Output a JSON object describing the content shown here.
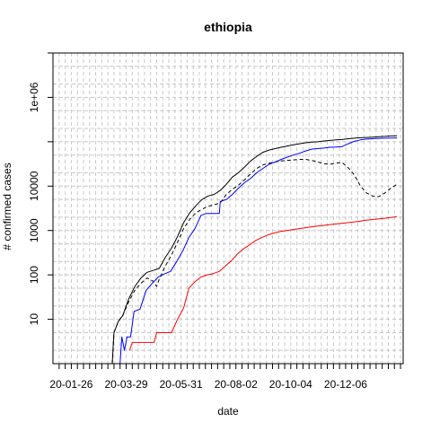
{
  "chart_data": {
    "type": "line",
    "title": "ethiopia",
    "xlabel": "date",
    "ylabel": "# confirmed cases",
    "y_scale": "log",
    "ylim": [
      1,
      10000000
    ],
    "xlim": [
      "2020-01-07",
      "2021-02-08"
    ],
    "grid": true,
    "legend": "none",
    "x_tick_labels": [
      {
        "date": "2020-01-26",
        "label": "20-01-26"
      },
      {
        "date": "2020-03-29",
        "label": "20-03-29"
      },
      {
        "date": "2020-05-31",
        "label": "20-05-31"
      },
      {
        "date": "2020-08-02",
        "label": "20-08-02"
      },
      {
        "date": "2020-10-04",
        "label": "20-10-04"
      },
      {
        "date": "2020-12-06",
        "label": "20-12-06"
      }
    ],
    "y_tick_labels": [
      {
        "value": 10,
        "label": "10"
      },
      {
        "value": 100,
        "label": "100"
      },
      {
        "value": 1000,
        "label": "1000"
      },
      {
        "value": 10000,
        "label": "10000"
      },
      {
        "value": 1000000,
        "label": "1e+06"
      }
    ],
    "series": [
      {
        "color": "#000000",
        "dash": "solid",
        "points": [
          [
            "2020-03-13",
            1
          ],
          [
            "2020-03-15",
            5
          ],
          [
            "2020-03-20",
            9
          ],
          [
            "2020-03-25",
            12
          ],
          [
            "2020-04-01",
            29
          ],
          [
            "2020-04-08",
            55
          ],
          [
            "2020-04-15",
            85
          ],
          [
            "2020-04-22",
            114
          ],
          [
            "2020-04-29",
            126
          ],
          [
            "2020-05-06",
            140
          ],
          [
            "2020-05-13",
            250
          ],
          [
            "2020-05-20",
            400
          ],
          [
            "2020-05-27",
            730
          ],
          [
            "2020-06-03",
            1500
          ],
          [
            "2020-06-10",
            2500
          ],
          [
            "2020-06-17",
            3600
          ],
          [
            "2020-06-24",
            5000
          ],
          [
            "2020-07-01",
            6000
          ],
          [
            "2020-07-08",
            6500
          ],
          [
            "2020-07-15",
            8000
          ],
          [
            "2020-07-22",
            11000
          ],
          [
            "2020-07-29",
            16000
          ],
          [
            "2020-08-05",
            20000
          ],
          [
            "2020-08-12",
            27000
          ],
          [
            "2020-08-19",
            37000
          ],
          [
            "2020-08-26",
            47000
          ],
          [
            "2020-09-02",
            58000
          ],
          [
            "2020-09-09",
            65000
          ],
          [
            "2020-09-16",
            70000
          ],
          [
            "2020-09-23",
            75000
          ],
          [
            "2020-09-30",
            80000
          ],
          [
            "2020-10-07",
            85000
          ],
          [
            "2020-10-14",
            90000
          ],
          [
            "2020-10-21",
            95000
          ],
          [
            "2020-10-28",
            98000
          ],
          [
            "2020-11-04",
            100000
          ],
          [
            "2020-11-11",
            104000
          ],
          [
            "2020-11-18",
            107000
          ],
          [
            "2020-11-25",
            110000
          ],
          [
            "2020-12-02",
            112000
          ],
          [
            "2020-12-09",
            117000
          ],
          [
            "2020-12-16",
            120000
          ],
          [
            "2020-12-23",
            123000
          ],
          [
            "2020-12-30",
            125000
          ],
          [
            "2021-01-06",
            127000
          ],
          [
            "2021-01-13",
            130000
          ],
          [
            "2021-01-20",
            132000
          ],
          [
            "2021-01-27",
            135000
          ],
          [
            "2021-02-03",
            137000
          ]
        ]
      },
      {
        "color": "#000000",
        "dash": "dashed",
        "points": [
          [
            "2020-03-13",
            1
          ],
          [
            "2020-03-15",
            5
          ],
          [
            "2020-03-20",
            9
          ],
          [
            "2020-03-25",
            12
          ],
          [
            "2020-04-01",
            25
          ],
          [
            "2020-04-08",
            45
          ],
          [
            "2020-04-15",
            65
          ],
          [
            "2020-04-22",
            85
          ],
          [
            "2020-04-29",
            72
          ],
          [
            "2020-05-03",
            55
          ],
          [
            "2020-05-06",
            80
          ],
          [
            "2020-05-13",
            160
          ],
          [
            "2020-05-20",
            280
          ],
          [
            "2020-05-27",
            540
          ],
          [
            "2020-06-03",
            1100
          ],
          [
            "2020-06-10",
            1800
          ],
          [
            "2020-06-17",
            2500
          ],
          [
            "2020-06-24",
            3000
          ],
          [
            "2020-07-01",
            3500
          ],
          [
            "2020-07-08",
            3800
          ],
          [
            "2020-07-15",
            4200
          ],
          [
            "2020-07-22",
            6500
          ],
          [
            "2020-07-29",
            8500
          ],
          [
            "2020-08-05",
            10500
          ],
          [
            "2020-08-12",
            14000
          ],
          [
            "2020-08-19",
            19000
          ],
          [
            "2020-08-26",
            25000
          ],
          [
            "2020-09-02",
            30000
          ],
          [
            "2020-09-09",
            33000
          ],
          [
            "2020-09-16",
            35000
          ],
          [
            "2020-09-23",
            37000
          ],
          [
            "2020-09-30",
            38000
          ],
          [
            "2020-10-07",
            39000
          ],
          [
            "2020-10-14",
            40000
          ],
          [
            "2020-10-21",
            40000
          ],
          [
            "2020-10-28",
            38000
          ],
          [
            "2020-11-04",
            35000
          ],
          [
            "2020-11-11",
            32000
          ],
          [
            "2020-11-18",
            31000
          ],
          [
            "2020-11-25",
            33000
          ],
          [
            "2020-12-02",
            34000
          ],
          [
            "2020-12-09",
            26000
          ],
          [
            "2020-12-16",
            18000
          ],
          [
            "2020-12-23",
            10000
          ],
          [
            "2020-12-30",
            7000
          ],
          [
            "2021-01-06",
            6000
          ],
          [
            "2021-01-13",
            5800
          ],
          [
            "2021-01-20",
            7000
          ],
          [
            "2021-01-27",
            9000
          ],
          [
            "2021-02-03",
            11000
          ]
        ]
      },
      {
        "color": "#0000ff",
        "dash": "solid",
        "points": [
          [
            "2020-03-22",
            1
          ],
          [
            "2020-03-24",
            4
          ],
          [
            "2020-03-27",
            2
          ],
          [
            "2020-03-30",
            4
          ],
          [
            "2020-04-03",
            4
          ],
          [
            "2020-04-07",
            15
          ],
          [
            "2020-04-14",
            17
          ],
          [
            "2020-04-21",
            45
          ],
          [
            "2020-04-28",
            65
          ],
          [
            "2020-05-05",
            90
          ],
          [
            "2020-05-12",
            105
          ],
          [
            "2020-05-19",
            120
          ],
          [
            "2020-05-26",
            200
          ],
          [
            "2020-06-02",
            350
          ],
          [
            "2020-06-09",
            700
          ],
          [
            "2020-06-16",
            1100
          ],
          [
            "2020-06-23",
            2200
          ],
          [
            "2020-06-29",
            2430
          ],
          [
            "2020-07-06",
            2430
          ],
          [
            "2020-07-14",
            2430
          ],
          [
            "2020-07-15",
            4500
          ],
          [
            "2020-07-22",
            5000
          ],
          [
            "2020-07-29",
            6500
          ],
          [
            "2020-08-05",
            9000
          ],
          [
            "2020-08-12",
            12000
          ],
          [
            "2020-08-19",
            15000
          ],
          [
            "2020-08-26",
            20000
          ],
          [
            "2020-09-02",
            25000
          ],
          [
            "2020-09-09",
            31000
          ],
          [
            "2020-09-16",
            35000
          ],
          [
            "2020-09-23",
            40000
          ],
          [
            "2020-09-30",
            45000
          ],
          [
            "2020-10-07",
            50000
          ],
          [
            "2020-10-14",
            55000
          ],
          [
            "2020-10-21",
            62000
          ],
          [
            "2020-10-28",
            68000
          ],
          [
            "2020-11-04",
            70000
          ],
          [
            "2020-11-11",
            72000
          ],
          [
            "2020-11-18",
            75000
          ],
          [
            "2020-11-25",
            76000
          ],
          [
            "2020-12-02",
            78000
          ],
          [
            "2020-12-09",
            90000
          ],
          [
            "2020-12-16",
            102000
          ],
          [
            "2020-12-23",
            110000
          ],
          [
            "2020-12-30",
            115000
          ],
          [
            "2021-01-06",
            117000
          ],
          [
            "2021-01-13",
            119000
          ],
          [
            "2021-01-20",
            120000
          ],
          [
            "2021-01-27",
            121000
          ],
          [
            "2021-02-03",
            122000
          ]
        ]
      },
      {
        "color": "#ff0000",
        "dash": "solid",
        "points": [
          [
            "2020-04-02",
            2
          ],
          [
            "2020-04-05",
            3
          ],
          [
            "2020-04-30",
            3
          ],
          [
            "2020-05-03",
            5
          ],
          [
            "2020-05-06",
            5
          ],
          [
            "2020-05-20",
            5
          ],
          [
            "2020-05-27",
            10
          ],
          [
            "2020-06-03",
            18
          ],
          [
            "2020-06-09",
            50
          ],
          [
            "2020-06-16",
            70
          ],
          [
            "2020-06-23",
            90
          ],
          [
            "2020-06-30",
            100
          ],
          [
            "2020-07-07",
            107
          ],
          [
            "2020-07-14",
            120
          ],
          [
            "2020-07-21",
            160
          ],
          [
            "2020-07-28",
            210
          ],
          [
            "2020-08-04",
            300
          ],
          [
            "2020-08-11",
            390
          ],
          [
            "2020-08-18",
            480
          ],
          [
            "2020-08-25",
            600
          ],
          [
            "2020-09-01",
            700
          ],
          [
            "2020-09-08",
            800
          ],
          [
            "2020-09-15",
            880
          ],
          [
            "2020-09-22",
            950
          ],
          [
            "2020-09-29",
            1000
          ],
          [
            "2020-10-06",
            1050
          ],
          [
            "2020-10-13",
            1100
          ],
          [
            "2020-10-20",
            1150
          ],
          [
            "2020-10-27",
            1200
          ],
          [
            "2020-11-03",
            1250
          ],
          [
            "2020-11-10",
            1300
          ],
          [
            "2020-11-17",
            1350
          ],
          [
            "2020-11-24",
            1400
          ],
          [
            "2020-12-01",
            1450
          ],
          [
            "2020-12-08",
            1500
          ],
          [
            "2020-12-15",
            1560
          ],
          [
            "2020-12-22",
            1620
          ],
          [
            "2020-12-29",
            1700
          ],
          [
            "2021-01-05",
            1760
          ],
          [
            "2021-01-12",
            1820
          ],
          [
            "2021-01-19",
            1880
          ],
          [
            "2021-01-26",
            1950
          ],
          [
            "2021-02-03",
            2050
          ]
        ]
      }
    ]
  }
}
